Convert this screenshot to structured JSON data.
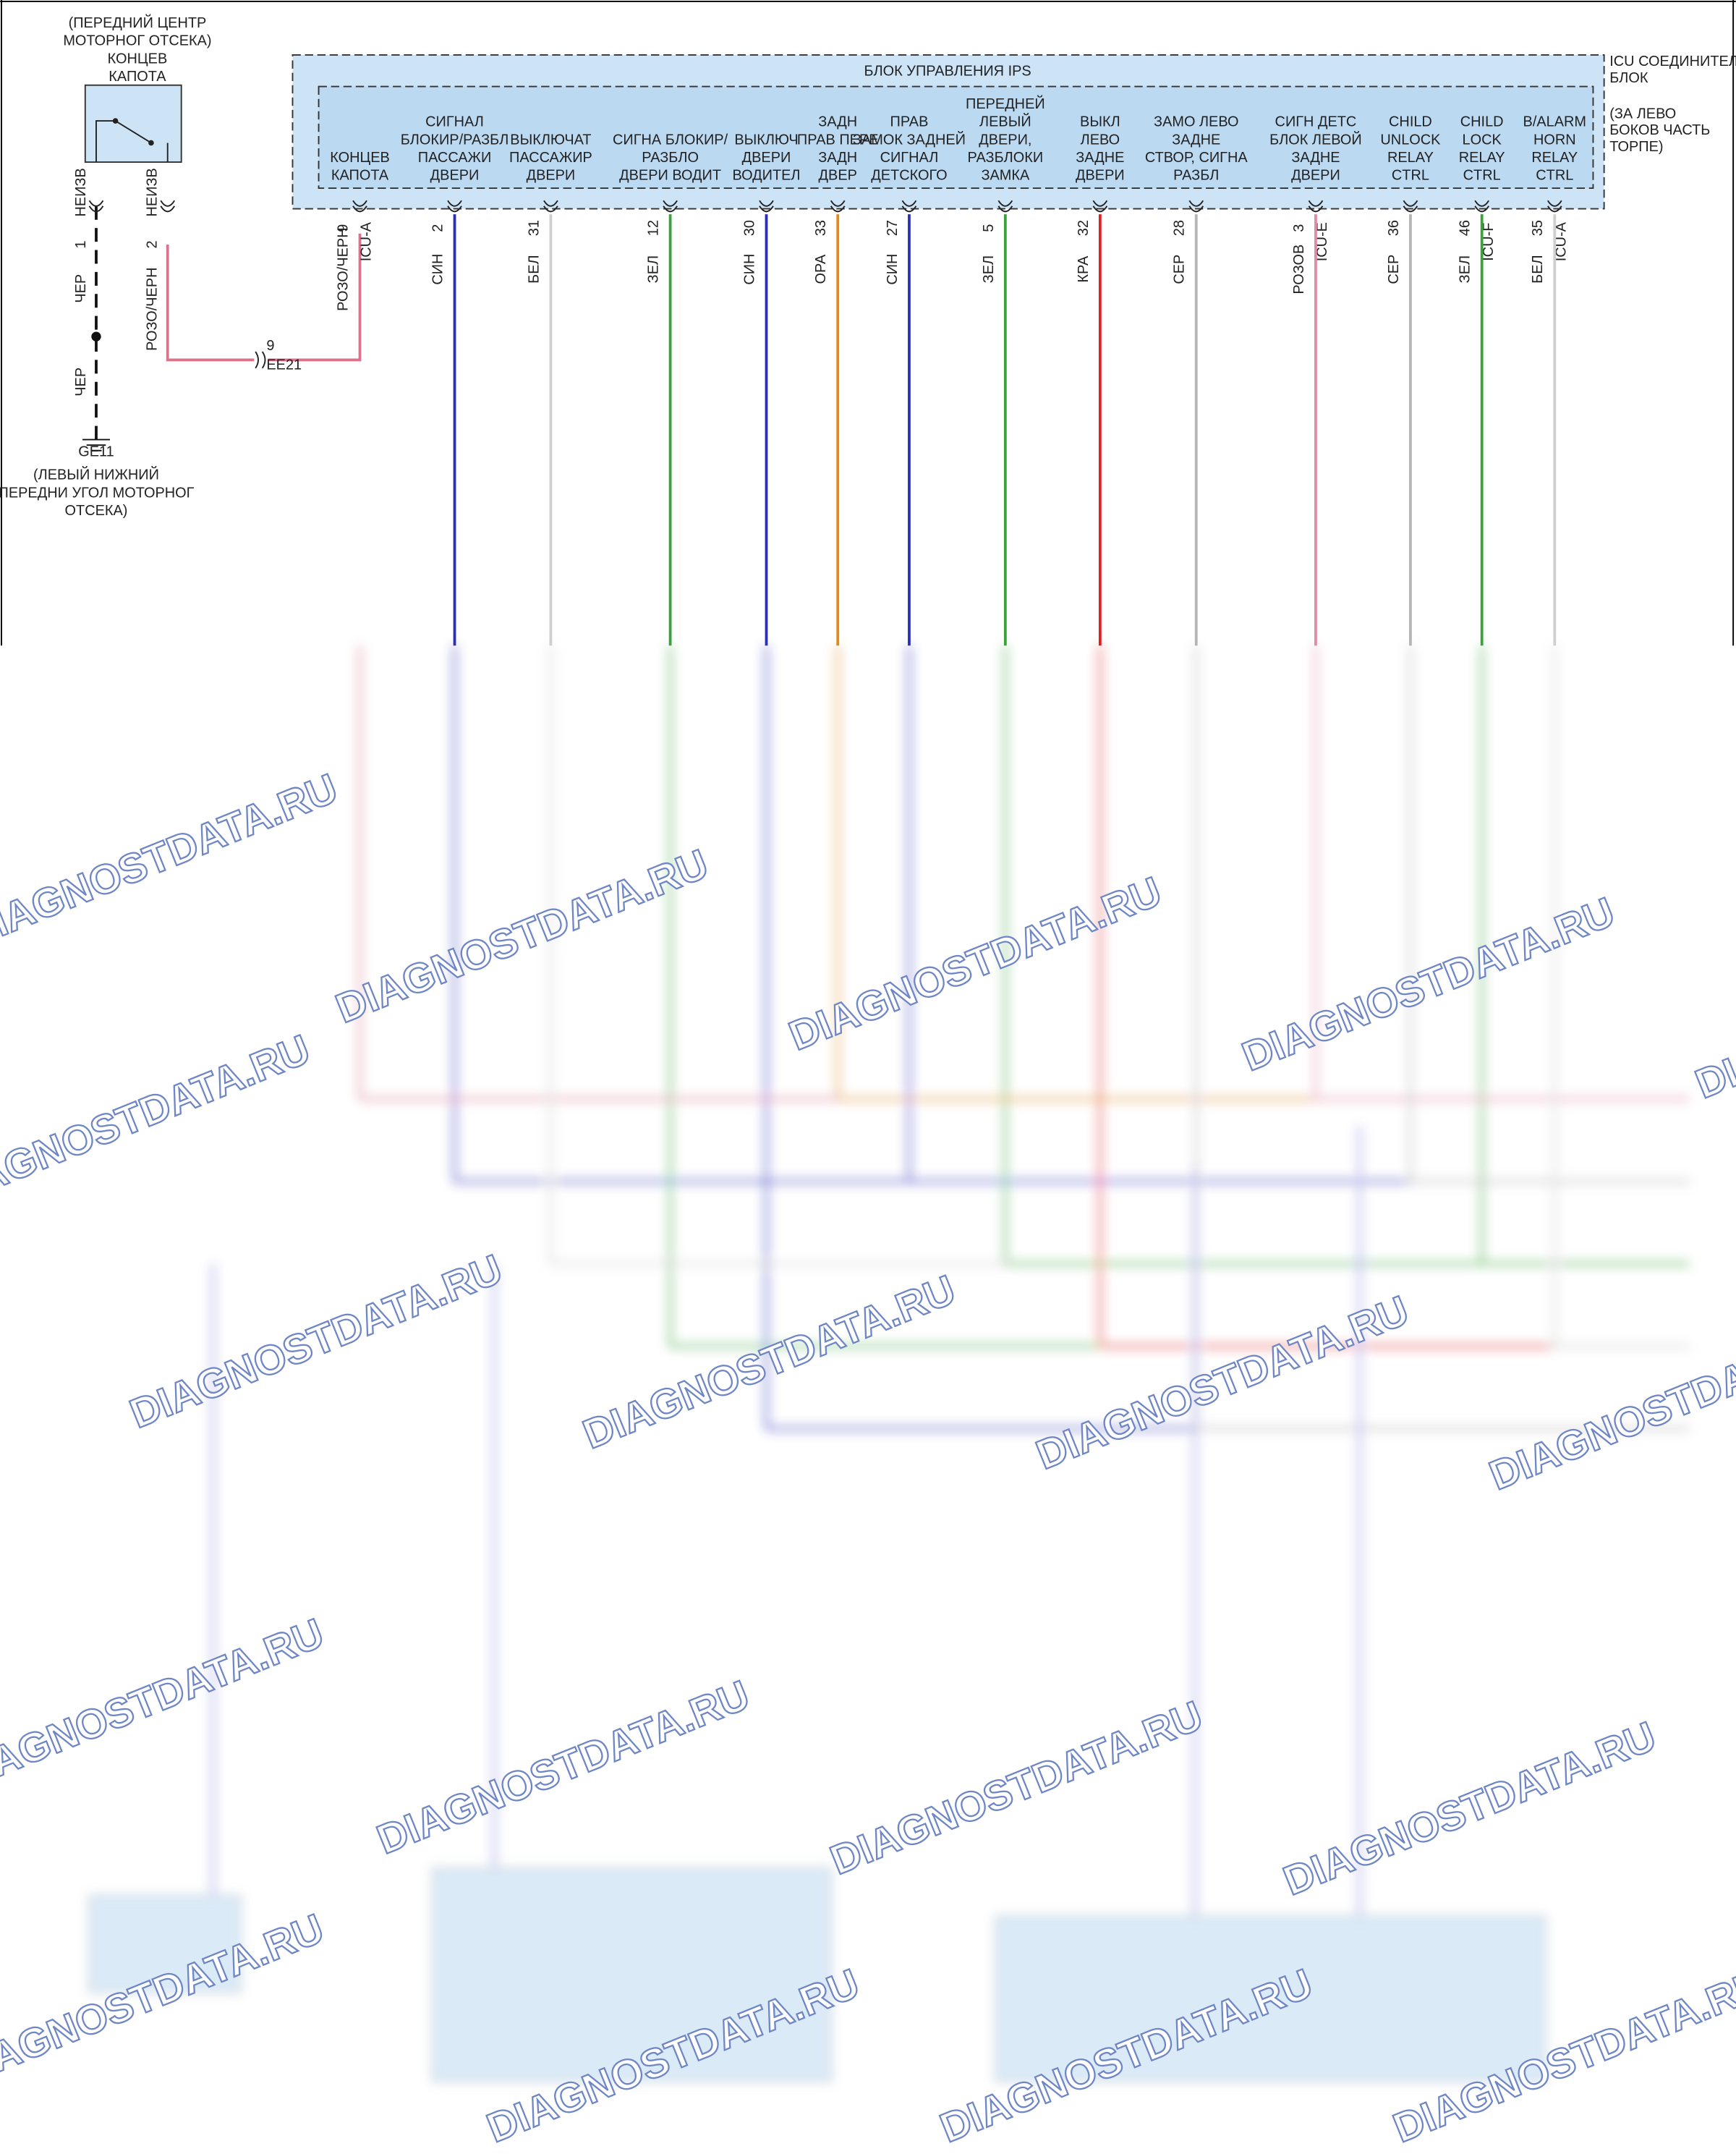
{
  "hood_switch": {
    "location_lines": [
      "(ПЕРЕДНИЙ ЦЕНТР",
      "МОТОРНОГ ОТСЕКА)"
    ],
    "name_lines": [
      "КОНЦЕВ",
      "КАПОТА"
    ],
    "pins": [
      {
        "pin": "1",
        "label": "НЕИЗВ",
        "wire": "ЧЕР"
      },
      {
        "pin": "2",
        "label": "НЕИЗВ",
        "wire": "РОЗО/ЧЕРН"
      }
    ]
  },
  "ground": {
    "wire": "ЧЕР",
    "name": "GE11",
    "location_lines": [
      "(ЛЕВЫЙ НИЖНИЙ",
      "ПЕРЕДНИ УГОЛ МОТОРНОГ",
      "ОТСЕКА)"
    ]
  },
  "connector_ee21": {
    "pin": "9",
    "name": "EE21"
  },
  "icu": {
    "title": "БЛОК УПРАВЛЕНИЯ IPS",
    "side_note_lines": [
      "ICU СОЕДИНИТЕЛ",
      "БЛОК"
    ],
    "location_lines": [
      "(ЗА ЛЕВО",
      "БОКОВ ЧАСТЬ",
      "ТОРПЕ)"
    ],
    "pins": [
      {
        "label_lines": [
          "КОНЦЕВ",
          "КАПОТА"
        ],
        "pin": "9",
        "connector": "ICU-A",
        "wire": "РОЗО/ЧЕРН",
        "color": "#d9748f"
      },
      {
        "label_lines": [
          "СИГНАЛ",
          "БЛОКИР/РАЗБЛ",
          "ПАССАЖИ",
          "ДВЕРИ"
        ],
        "pin": "2",
        "wire": "СИН",
        "color": "#2b2fb8"
      },
      {
        "label_lines": [
          "ВЫКЛЮЧАТ",
          "ПАССАЖИР",
          "ДВЕРИ"
        ],
        "pin": "31",
        "wire": "БЕЛ",
        "color": "#cfcfcf"
      },
      {
        "label_lines": [
          "СИГНА БЛОКИР/",
          "РАЗБЛО",
          "ДВЕРИ ВОДИТ"
        ],
        "pin": "12",
        "wire": "ЗЕЛ",
        "color": "#3aa23a"
      },
      {
        "label_lines": [
          "ВЫКЛЮЧ",
          "ДВЕРИ",
          "ВОДИТЕЛ"
        ],
        "pin": "30",
        "wire": "СИН",
        "color": "#2b2fb8"
      },
      {
        "label_lines": [
          "ЗАДН",
          "ПРАВ ПЕРЕ",
          "ЗАДН",
          "ДВЕР"
        ],
        "pin": "33",
        "wire": "ОРА",
        "color": "#e08a1e"
      },
      {
        "label_lines": [
          "ПРАВ",
          "ЗАМОК ЗАДНЕЙ",
          "СИГНАЛ",
          "ДЕТСКОГО"
        ],
        "pin": "27",
        "wire": "СИН",
        "color": "#2b2fb8"
      },
      {
        "label_lines": [
          "ПЕРЕДНЕЙ",
          "ЛЕВЫЙ",
          "ДВЕРИ,",
          "РАЗБЛОКИ",
          "ЗАМКА"
        ],
        "pin": "5",
        "wire": "ЗЕЛ",
        "color": "#3aa23a"
      },
      {
        "label_lines": [
          "ВЫКЛ",
          "ЛЕВО",
          "ЗАДНЕ",
          "ДВЕРИ"
        ],
        "pin": "32",
        "wire": "КРА",
        "color": "#e02020"
      },
      {
        "label_lines": [
          "ЗАМО ЛЕВО",
          "ЗАДНЕ",
          "СТВОР, СИГНА",
          "РАЗБЛ"
        ],
        "pin": "28",
        "wire": "СЕР",
        "color": "#b5b5b5"
      },
      {
        "label_lines": [
          "СИГН ДЕТС",
          "БЛОК ЛЕВОЙ",
          "ЗАДНЕ",
          "ДВЕРИ"
        ],
        "pin": "3",
        "connector": "ICU-E",
        "wire": "РОЗОВ",
        "color": "#e08aa8"
      },
      {
        "label_lines": [
          "CHILD",
          "UNLOCK",
          "RELAY",
          "CTRL"
        ],
        "pin": "36",
        "wire": "СЕР",
        "color": "#b5b5b5"
      },
      {
        "label_lines": [
          "CHILD",
          "LOCK",
          "RELAY",
          "CTRL"
        ],
        "pin": "46",
        "connector": "ICU-F",
        "wire": "ЗЕЛ",
        "color": "#3aa23a"
      },
      {
        "label_lines": [
          "B/ALARM",
          "HORN",
          "RELAY",
          "CTRL"
        ],
        "pin": "35",
        "connector": "ICU-A",
        "wire": "БЕЛ",
        "color": "#cfcfcf"
      }
    ]
  },
  "watermark": "DIAGNOSTDATA.RU"
}
